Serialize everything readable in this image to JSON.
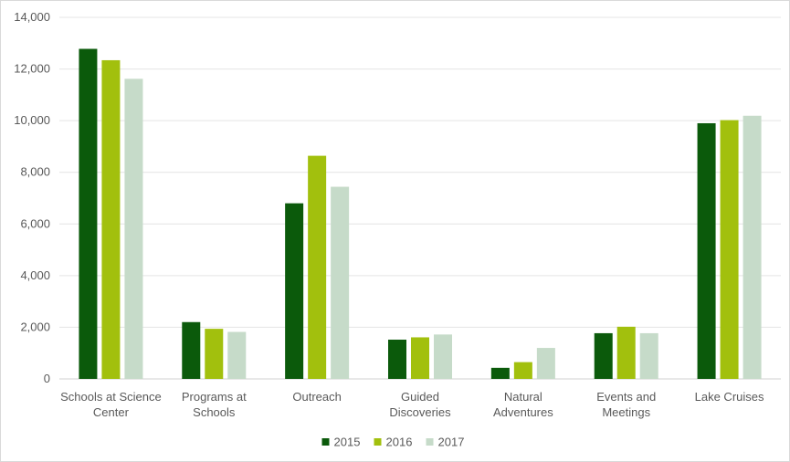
{
  "chart_data": {
    "type": "bar",
    "categories": [
      [
        "Schools at Science",
        "Center"
      ],
      [
        "Programs at",
        "Schools"
      ],
      [
        "Outreach"
      ],
      [
        "Guided",
        "Discoveries"
      ],
      [
        "Natural",
        "Adventures"
      ],
      [
        "Events and",
        "Meetings"
      ],
      [
        "Lake Cruises"
      ]
    ],
    "series": [
      {
        "name": "2015",
        "color": "#0b5a0b",
        "values": [
          12780,
          2200,
          6800,
          1520,
          430,
          1770,
          9900
        ]
      },
      {
        "name": "2016",
        "color": "#a2c00d",
        "values": [
          12340,
          1940,
          8640,
          1610,
          650,
          2020,
          10020
        ]
      },
      {
        "name": "2017",
        "color": "#c6dbc9",
        "values": [
          11620,
          1820,
          7440,
          1720,
          1200,
          1770,
          10190
        ]
      }
    ],
    "y_ticks": [
      "0",
      "2,000",
      "4,000",
      "6,000",
      "8,000",
      "10,000",
      "12,000",
      "14,000"
    ],
    "ylim": [
      0,
      14000
    ],
    "grid": true,
    "legend_position": "bottom"
  }
}
